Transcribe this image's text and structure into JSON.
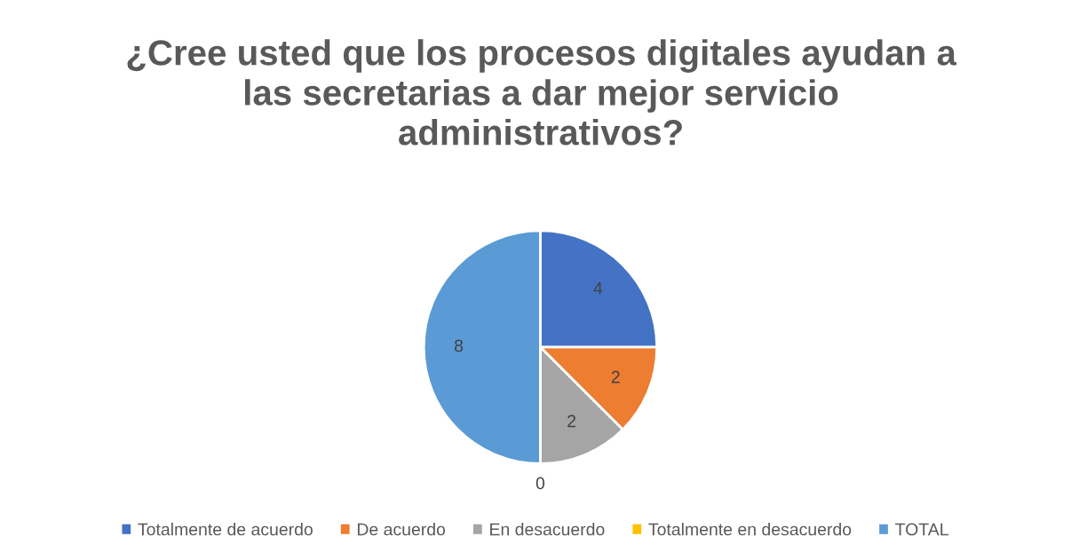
{
  "chart_data": {
    "type": "pie",
    "title": "¿Cree usted que los procesos digitales ayudan a\nlas secretarias a dar mejor servicio\nadministrativos?",
    "categories": [
      "Totalmente de acuerdo",
      "De acuerdo",
      "En desacuerdo",
      "Totalmente en desacuerdo",
      "TOTAL"
    ],
    "values": [
      4,
      2,
      2,
      0,
      8
    ],
    "colors": [
      "#4472c4",
      "#ed7d31",
      "#a5a5a5",
      "#ffc000",
      "#5b9bd5"
    ],
    "value_labels": [
      "4",
      "2",
      "2",
      "0",
      "8"
    ],
    "legend": "bottom"
  }
}
